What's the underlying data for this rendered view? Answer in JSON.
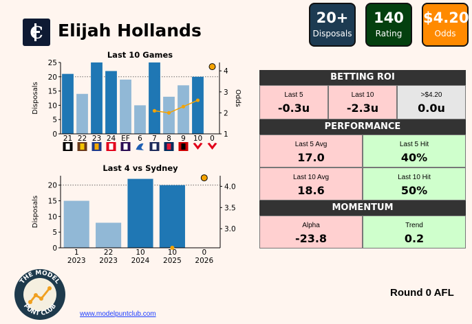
{
  "header": {
    "player_name": "Elijah Hollands",
    "club_logo_icon": "carlton-monogram-icon",
    "stats": [
      {
        "value": "20+",
        "label": "Disposals",
        "color": "#1d3b52"
      },
      {
        "value": "140",
        "label": "Rating",
        "color": "#04400f"
      },
      {
        "value": "$4.20",
        "label": "Odds",
        "color": "#ff8a00"
      }
    ]
  },
  "chart_data": [
    {
      "type": "bar",
      "title": "Last 10 Games",
      "ylabel": "Disposals",
      "y2label": "Odds",
      "categories": [
        "21",
        "22",
        "23",
        "24",
        "EF",
        "6",
        "7",
        "8",
        "9",
        "10",
        "0"
      ],
      "values": [
        21,
        14,
        25,
        22,
        19,
        10,
        25,
        13,
        17,
        20,
        null
      ],
      "bar_colors": [
        "#1f77b4",
        "#91b8d6",
        "#1f77b4",
        "#1f77b4",
        "#91b8d6",
        "#91b8d6",
        "#1f77b4",
        "#91b8d6",
        "#91b8d6",
        "#1f77b4",
        null
      ],
      "threshold": 20,
      "ylim": [
        0,
        25
      ],
      "yticks": [
        0,
        5,
        10,
        15,
        20,
        25
      ],
      "odds_series": {
        "x_index": [
          6,
          7,
          8,
          9
        ],
        "values": [
          2.1,
          2.0,
          2.3,
          2.6
        ]
      },
      "current_odds": {
        "x_index": 10,
        "value": 4.2
      },
      "y2lim": [
        1,
        4.4
      ],
      "y2ticks": [
        1,
        2,
        3,
        4
      ],
      "opponent_icons": [
        "collingwood-icon",
        "hawthorn-icon",
        "west-coast-icon",
        "st-kilda-icon",
        "fremantle-icon",
        "kangaroo-icon",
        "geelong-icon",
        "adelaide-icon",
        "essendon-icon",
        "sydney-icon",
        "sydney-icon"
      ]
    },
    {
      "type": "bar",
      "title": "Last 4 vs Sydney",
      "ylabel": "Disposals",
      "categories": [
        "1\n2023",
        "22\n2023",
        "10\n2024",
        "10\n2025",
        "0\n2026"
      ],
      "category_top": [
        "1",
        "22",
        "10",
        "10",
        "0"
      ],
      "category_bottom": [
        "2023",
        "2023",
        "2024",
        "2025",
        "2026"
      ],
      "values": [
        15,
        8,
        22,
        20,
        null
      ],
      "bar_colors": [
        "#91b8d6",
        "#91b8d6",
        "#1f77b4",
        "#1f77b4",
        null
      ],
      "threshold": 20,
      "ylim": [
        0,
        23
      ],
      "yticks": [
        0,
        5,
        10,
        15,
        20
      ],
      "odds_points": [
        {
          "x_index": 3,
          "value": 2.55
        },
        {
          "x_index": 4,
          "value": 4.2
        }
      ],
      "y2lim": [
        2.55,
        4.25
      ],
      "y2ticks": [
        3.0,
        3.5,
        4.0
      ]
    }
  ],
  "betting_roi": {
    "title": "BETTING ROI",
    "cells": [
      {
        "label": "Last 5",
        "value": "-0.3u",
        "tone": "red"
      },
      {
        "label": "Last 10",
        "value": "-2.3u",
        "tone": "red"
      },
      {
        "label": ">$4.20",
        "value": "0.0u",
        "tone": "grey"
      }
    ]
  },
  "performance": {
    "title": "PERFORMANCE",
    "cells": [
      {
        "label": "Last 5 Avg",
        "value": "17.0",
        "tone": "red"
      },
      {
        "label": "Last 5 Hit",
        "value": "40%",
        "tone": "green"
      },
      {
        "label": "Last 10 Avg",
        "value": "18.6",
        "tone": "red"
      },
      {
        "label": "Last 10 Hit",
        "value": "50%",
        "tone": "green"
      }
    ]
  },
  "momentum": {
    "title": "MOMENTUM",
    "cells": [
      {
        "label": "Alpha",
        "value": "-23.8",
        "tone": "red"
      },
      {
        "label": "Trend",
        "value": "0.2",
        "tone": "green"
      }
    ]
  },
  "footer": {
    "brand_top": "THE MODEL",
    "brand_bottom": "PUNT CLUB",
    "link": "www.modelpuntclub.com",
    "round": "Round 0 AFL"
  }
}
